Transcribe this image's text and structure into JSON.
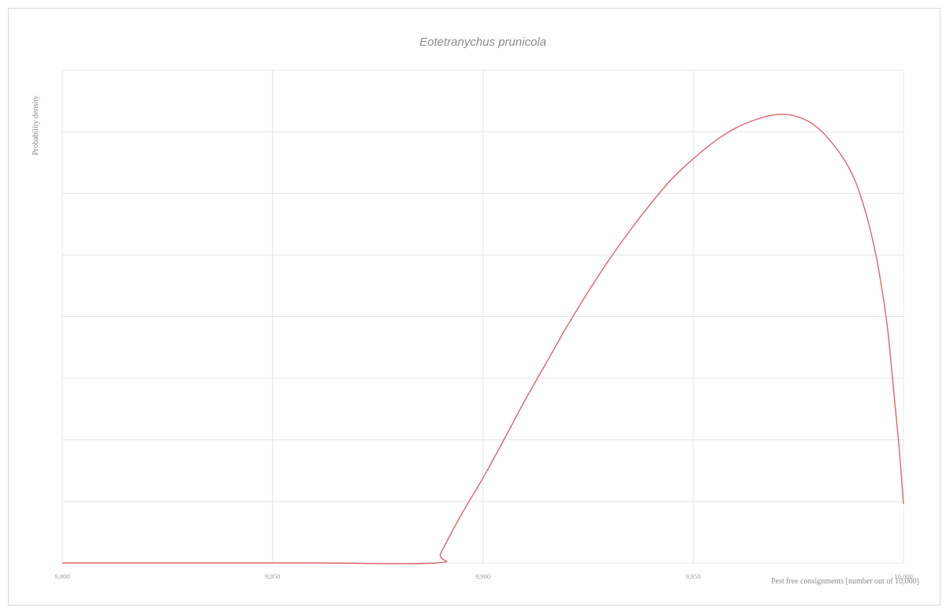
{
  "chart_data": {
    "type": "line",
    "title": "Eotetranychus prunicola",
    "xlabel": "Pest free consignments [number out of 10,000]",
    "ylabel": "Probability density",
    "xlim": [
      9800,
      10000
    ],
    "ylim": [
      0,
      1
    ],
    "x_ticks": [
      9800,
      9850,
      9900,
      9950,
      10000
    ],
    "x_tick_labels": [
      "9,800",
      "9,850",
      "9,900",
      "9,950",
      "10,000"
    ],
    "y_tick_labels": [],
    "grid": true,
    "series": [
      {
        "color": "#e06470",
        "x": [
          9800,
          9830,
          9860,
          9889,
          9890,
          9895,
          9900,
          9905,
          9910,
          9915,
          9920,
          9925,
          9930,
          9935,
          9940,
          9945,
          9950,
          9955,
          9960,
          9965,
          9970,
          9975,
          9980,
          9985,
          9988,
          9990,
          9992,
          9994,
          9996,
          9997,
          9998,
          9999,
          10000
        ],
        "y": [
          0,
          0,
          0,
          0,
          0.02,
          0.1,
          0.172,
          0.25,
          0.33,
          0.405,
          0.48,
          0.55,
          0.615,
          0.675,
          0.73,
          0.78,
          0.82,
          0.855,
          0.882,
          0.9,
          0.91,
          0.905,
          0.88,
          0.83,
          0.785,
          0.74,
          0.68,
          0.6,
          0.49,
          0.41,
          0.32,
          0.23,
          0.12
        ]
      }
    ]
  }
}
